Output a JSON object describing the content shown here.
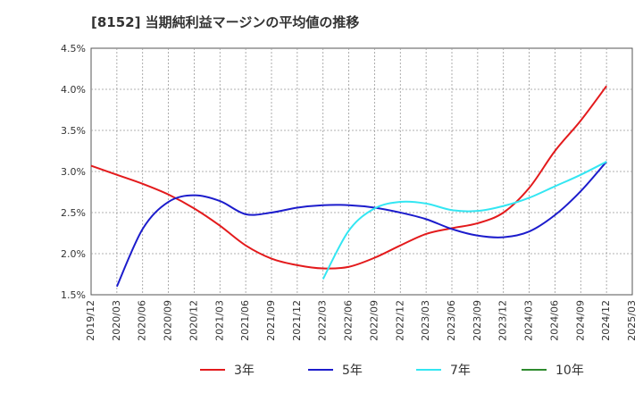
{
  "chart_data": {
    "type": "line",
    "title": "[8152]  当期純利益マージンの平均値の推移",
    "xlabel": "",
    "ylabel": "",
    "x": [
      "2019/12",
      "2020/03",
      "2020/06",
      "2020/09",
      "2020/12",
      "2021/03",
      "2021/06",
      "2021/09",
      "2021/12",
      "2022/03",
      "2022/06",
      "2022/09",
      "2022/12",
      "2023/03",
      "2023/06",
      "2023/09",
      "2023/12",
      "2024/03",
      "2024/06",
      "2024/09",
      "2024/12",
      "2025/03"
    ],
    "ylim": [
      1.5,
      4.5
    ],
    "yticks": [
      1.5,
      2.0,
      2.5,
      3.0,
      3.5,
      4.0,
      4.5
    ],
    "ytick_labels": [
      "1.5%",
      "2.0%",
      "2.5%",
      "3.0%",
      "3.5%",
      "4.0%",
      "4.5%"
    ],
    "grid": true,
    "legend_position": "bottom",
    "series": [
      {
        "name": "3年",
        "color": "#e31a1c",
        "values": [
          3.07,
          2.96,
          2.85,
          2.72,
          2.55,
          2.34,
          2.1,
          1.94,
          1.86,
          1.82,
          1.84,
          1.95,
          2.1,
          2.24,
          2.31,
          2.37,
          2.5,
          2.8,
          3.25,
          3.62,
          4.04,
          null
        ]
      },
      {
        "name": "5年",
        "color": "#1c1ccc",
        "values": [
          null,
          1.6,
          2.3,
          2.63,
          2.71,
          2.64,
          2.48,
          2.5,
          2.56,
          2.59,
          2.59,
          2.56,
          2.5,
          2.42,
          2.3,
          2.22,
          2.2,
          2.27,
          2.47,
          2.76,
          3.12,
          null
        ]
      },
      {
        "name": "7年",
        "color": "#33e6f2",
        "values": [
          null,
          null,
          null,
          null,
          null,
          null,
          null,
          null,
          null,
          1.69,
          2.28,
          2.55,
          2.63,
          2.61,
          2.53,
          2.52,
          2.58,
          2.68,
          2.82,
          2.96,
          3.12,
          null
        ]
      },
      {
        "name": "10年",
        "color": "#2e8b2e",
        "values": [
          null,
          null,
          null,
          null,
          null,
          null,
          null,
          null,
          null,
          null,
          null,
          null,
          null,
          null,
          null,
          null,
          null,
          null,
          null,
          null,
          null,
          null
        ]
      }
    ]
  }
}
